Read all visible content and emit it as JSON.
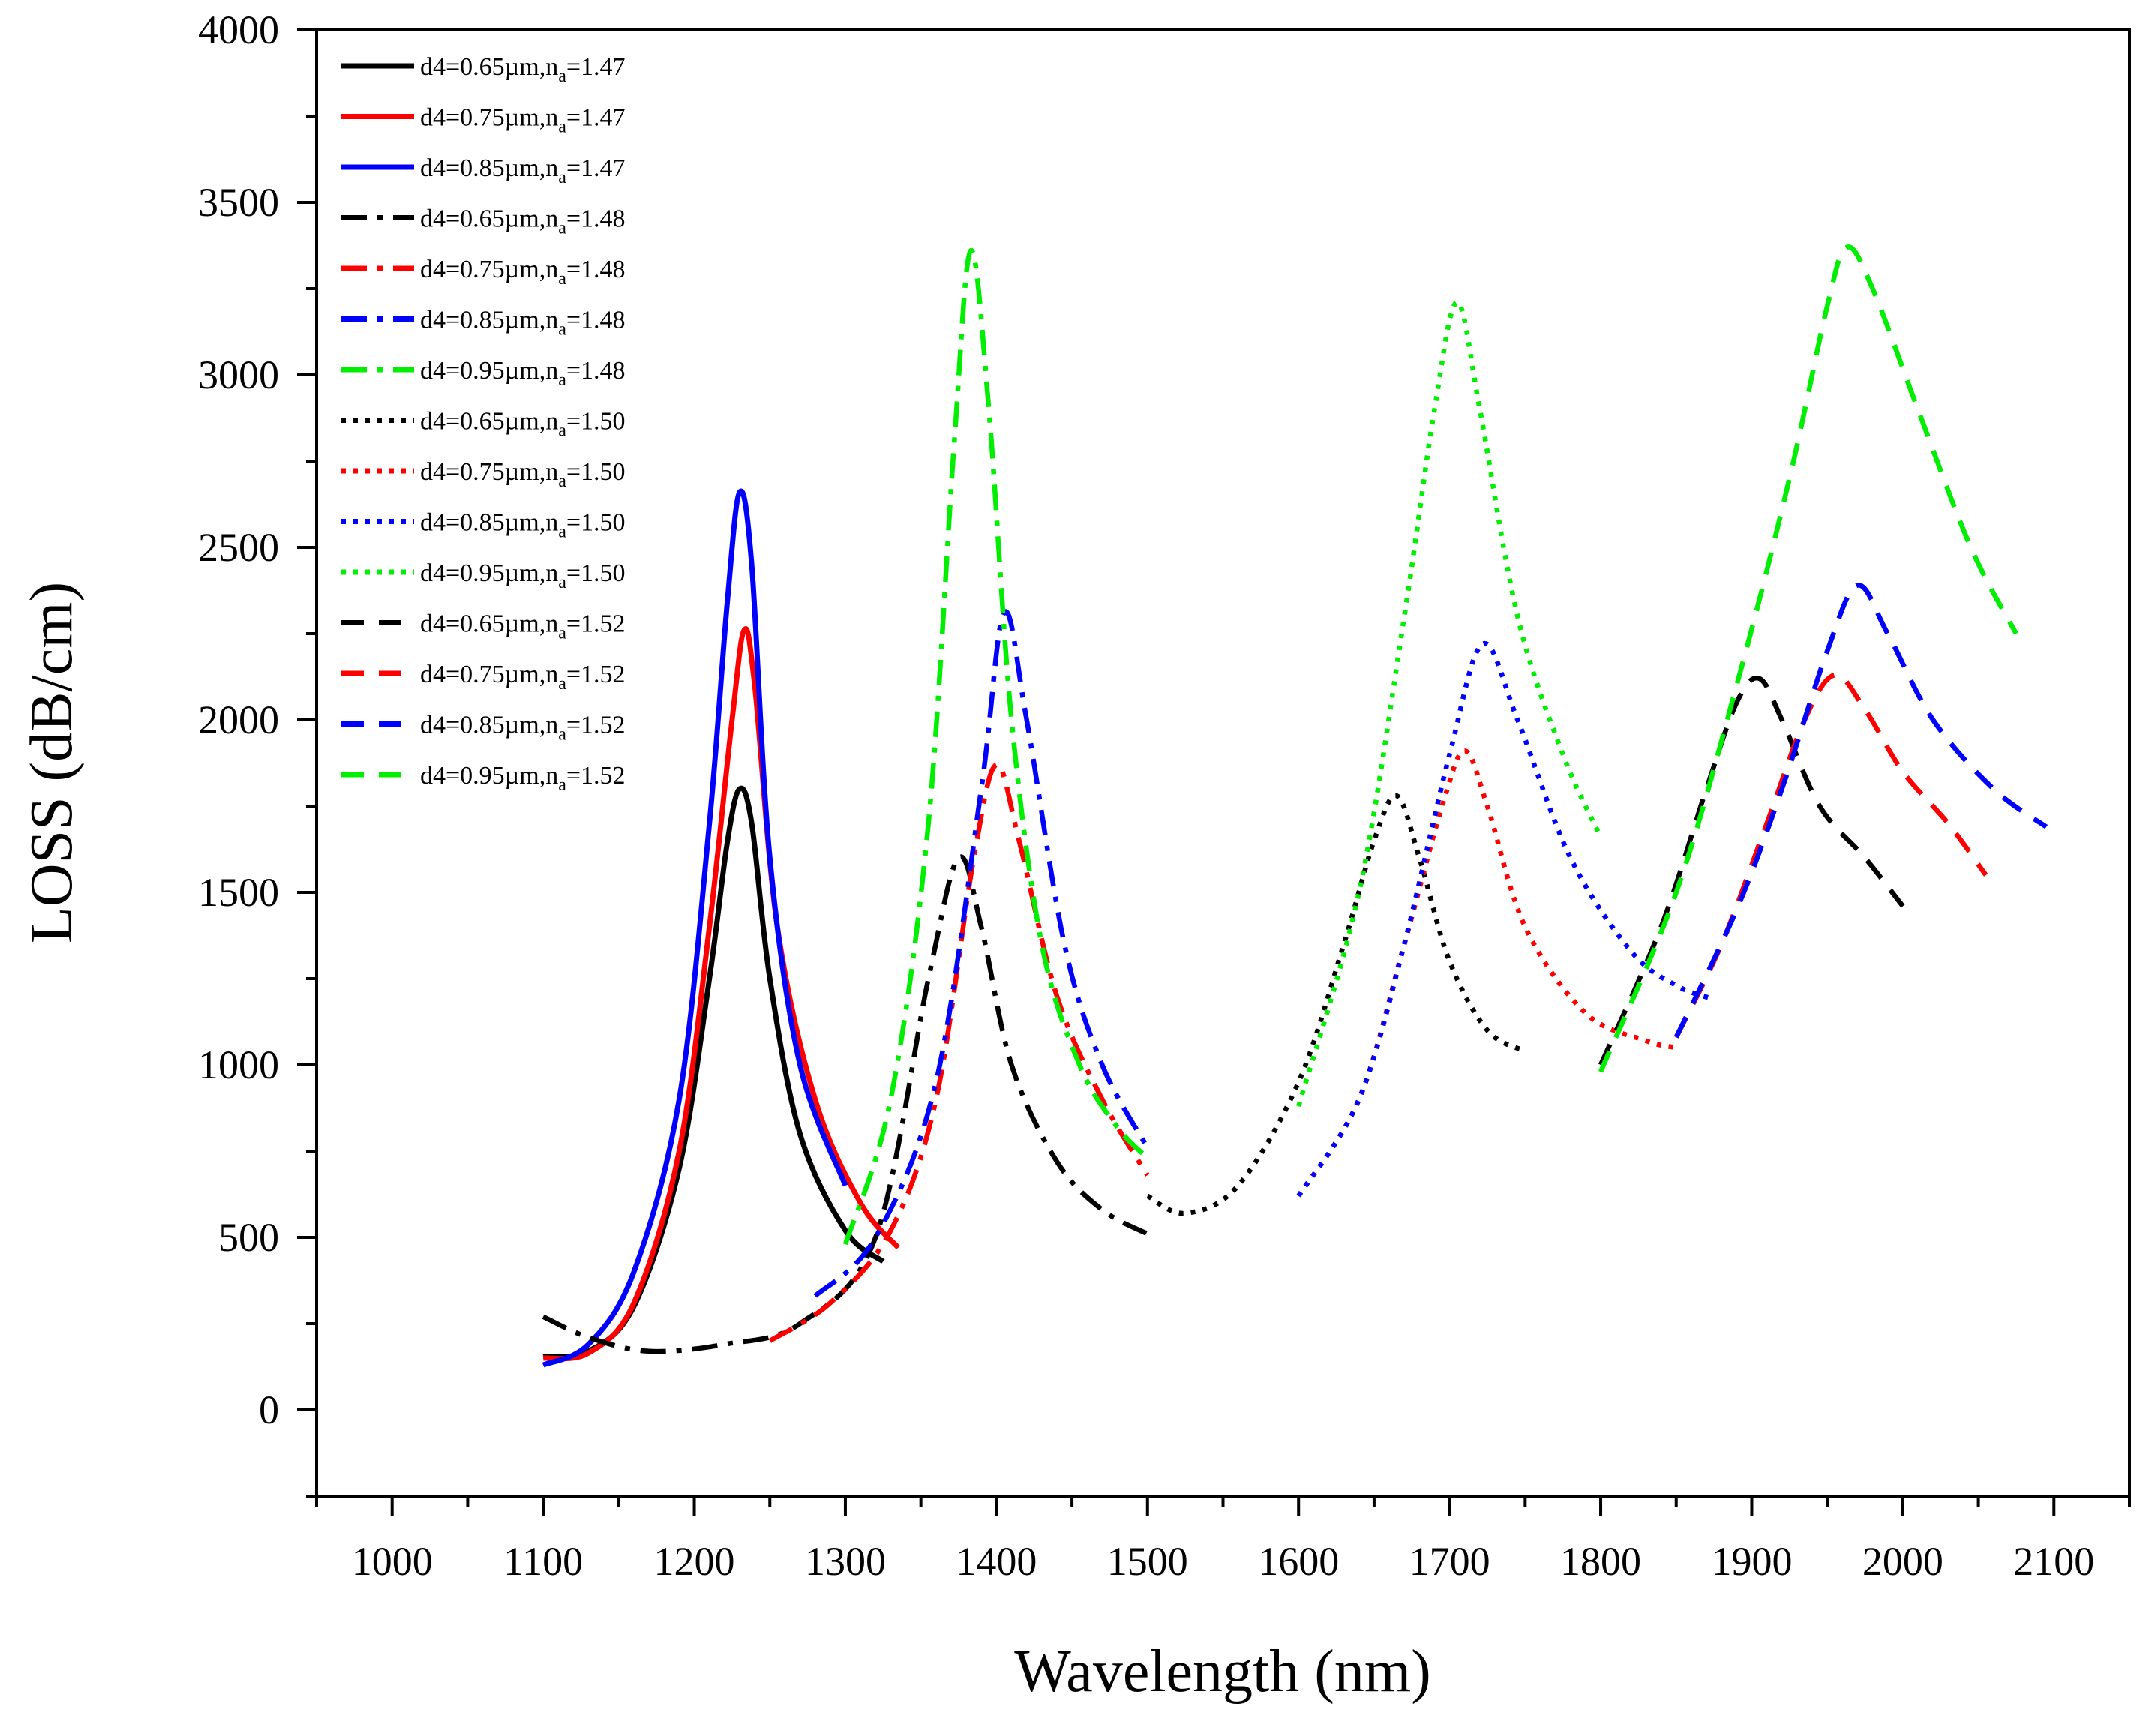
{
  "chart_data": {
    "type": "line",
    "title": "",
    "xlabel": "Wavelength (nm)",
    "ylabel": "LOSS (dB/cm)",
    "xlim": [
      950,
      2150
    ],
    "ylim": [
      -250,
      4000
    ],
    "xticks": [
      1000,
      1100,
      1200,
      1300,
      1400,
      1500,
      1600,
      1700,
      1800,
      1900,
      2000,
      2100
    ],
    "yticks": [
      0,
      500,
      1000,
      1500,
      2000,
      2500,
      3000,
      3500,
      4000
    ],
    "xtick_labels": [
      "1000",
      "1100",
      "1200",
      "1300",
      "1400",
      "1500",
      "1600",
      "1700",
      "1800",
      "1900",
      "2000",
      "2100"
    ],
    "ytick_labels": [
      "0",
      "500",
      "1000",
      "1500",
      "2000",
      "2500",
      "3000",
      "3500",
      "4000"
    ],
    "grid": false,
    "legend_position": "top-left",
    "series": [
      {
        "name": "d4=0.65µm,n",
        "sub": "a",
        "tail": "=1.47",
        "color": "#000000",
        "style": "solid",
        "x": [
          1100,
          1130,
          1160,
          1190,
          1210,
          1222,
          1230,
          1238,
          1250,
          1270,
          1300,
          1325
        ],
        "y": [
          155,
          170,
          300,
          700,
          1250,
          1650,
          1800,
          1700,
          1250,
          800,
          520,
          430
        ]
      },
      {
        "name": "d4=0.75µm,n",
        "sub": "a",
        "tail": "=1.47",
        "color": "#ff0000",
        "style": "solid",
        "x": [
          1100,
          1130,
          1160,
          1190,
          1210,
          1225,
          1233,
          1240,
          1255,
          1280,
          1310,
          1335
        ],
        "y": [
          150,
          165,
          310,
          750,
          1400,
          2000,
          2260,
          2100,
          1400,
          900,
          600,
          470
        ]
      },
      {
        "name": "d4=0.85µm,n",
        "sub": "a",
        "tail": "=1.47",
        "color": "#0000ff",
        "style": "solid",
        "x": [
          1100,
          1130,
          1160,
          1190,
          1210,
          1222,
          1230,
          1238,
          1250,
          1270,
          1300
        ],
        "y": [
          130,
          190,
          400,
          900,
          1700,
          2350,
          2660,
          2450,
          1600,
          1000,
          650
        ]
      },
      {
        "name": "d4=0.65µm,n",
        "sub": "a",
        "tail": "=1.48",
        "color": "#000000",
        "style": "dashdot",
        "x": [
          1100,
          1130,
          1170,
          1220,
          1270,
          1320,
          1355,
          1375,
          1390,
          1410,
          1440,
          1470,
          1500
        ],
        "y": [
          270,
          210,
          170,
          190,
          250,
          500,
          1250,
          1600,
          1400,
          1000,
          720,
          580,
          510
        ]
      },
      {
        "name": "d4=0.75µm,n",
        "sub": "a",
        "tail": "=1.48",
        "color": "#ff0000",
        "style": "dashdot",
        "x": [
          1250,
          1290,
          1330,
          1360,
          1385,
          1400,
          1415,
          1440,
          1470,
          1500
        ],
        "y": [
          200,
          310,
          520,
          900,
          1600,
          1870,
          1650,
          1200,
          900,
          680
        ]
      },
      {
        "name": "d4=0.85µm,n",
        "sub": "a",
        "tail": "=1.48",
        "color": "#0000ff",
        "style": "dashdot",
        "x": [
          1280,
          1320,
          1360,
          1390,
          1405,
          1420,
          1445,
          1470,
          1500
        ],
        "y": [
          330,
          500,
          950,
          1800,
          2310,
          2000,
          1350,
          1000,
          760
        ]
      },
      {
        "name": "d4=0.95µm,n",
        "sub": "a",
        "tail": "=1.48",
        "color": "#00ee00",
        "style": "dashdot",
        "x": [
          1300,
          1330,
          1355,
          1372,
          1383,
          1395,
          1410,
          1430,
          1455,
          1480,
          1500
        ],
        "y": [
          480,
          900,
          1700,
          2800,
          3360,
          2900,
          2000,
          1350,
          1000,
          820,
          730
        ]
      },
      {
        "name": "d4=0.65µm,n",
        "sub": "a",
        "tail": "=1.50",
        "color": "#000000",
        "style": "dotted",
        "x": [
          1500,
          1525,
          1560,
          1600,
          1630,
          1650,
          1665,
          1680,
          1700,
          1725,
          1750
        ],
        "y": [
          620,
          570,
          650,
          950,
          1350,
          1650,
          1780,
          1600,
          1300,
          1100,
          1040
        ]
      },
      {
        "name": "d4=0.75µm,n",
        "sub": "a",
        "tail": "=1.50",
        "color": "#ff0000",
        "style": "dotted",
        "x": [
          1600,
          1640,
          1670,
          1695,
          1710,
          1725,
          1750,
          1790,
          1830,
          1850
        ],
        "y": [
          620,
          900,
          1350,
          1750,
          1910,
          1750,
          1400,
          1150,
          1070,
          1050
        ]
      },
      {
        "name": "d4=0.85µm,n",
        "sub": "a",
        "tail": "=1.50",
        "color": "#0000ff",
        "style": "dotted",
        "x": [
          1600,
          1640,
          1670,
          1700,
          1722,
          1745,
          1780,
          1820,
          1850,
          1875
        ],
        "y": [
          620,
          900,
          1350,
          1900,
          2220,
          2000,
          1600,
          1330,
          1230,
          1190
        ]
      },
      {
        "name": "d4=0.95µm,n",
        "sub": "a",
        "tail": "=1.50",
        "color": "#00ee00",
        "style": "dotted",
        "x": [
          1600,
          1640,
          1670,
          1690,
          1705,
          1720,
          1745,
          1775,
          1800
        ],
        "y": [
          880,
          1500,
          2300,
          2900,
          3210,
          2900,
          2300,
          1900,
          1660
        ]
      },
      {
        "name": "d4=0.65µm,n",
        "sub": "a",
        "tail": "=1.52",
        "color": "#000000",
        "style": "dashed",
        "x": [
          1800,
          1840,
          1870,
          1890,
          1905,
          1920,
          1945,
          1975,
          2000
        ],
        "y": [
          1000,
          1400,
          1800,
          2050,
          2120,
          2000,
          1750,
          1600,
          1460
        ]
      },
      {
        "name": "d4=0.75µm,n",
        "sub": "a",
        "tail": "=1.52",
        "color": "#ff0000",
        "style": "dashed",
        "x": [
          1850,
          1880,
          1910,
          1935,
          1955,
          1975,
          2000,
          2030,
          2055
        ],
        "y": [
          1080,
          1350,
          1700,
          2000,
          2130,
          2030,
          1850,
          1700,
          1550
        ]
      },
      {
        "name": "d4=0.85µm,n",
        "sub": "a",
        "tail": "=1.52",
        "color": "#0000ff",
        "style": "dashed",
        "x": [
          1850,
          1890,
          1920,
          1950,
          1970,
          1990,
          2020,
          2060,
          2095
        ],
        "y": [
          1080,
          1450,
          1800,
          2200,
          2390,
          2250,
          2000,
          1800,
          1690
        ]
      },
      {
        "name": "d4=0.95µm,n",
        "sub": "a",
        "tail": "=1.52",
        "color": "#00ee00",
        "style": "dashed",
        "x": [
          1800,
          1850,
          1890,
          1925,
          1950,
          1963,
          1980,
          2010,
          2045,
          2075
        ],
        "y": [
          980,
          1500,
          2100,
          2700,
          3200,
          3370,
          3250,
          2900,
          2500,
          2250
        ]
      }
    ]
  }
}
